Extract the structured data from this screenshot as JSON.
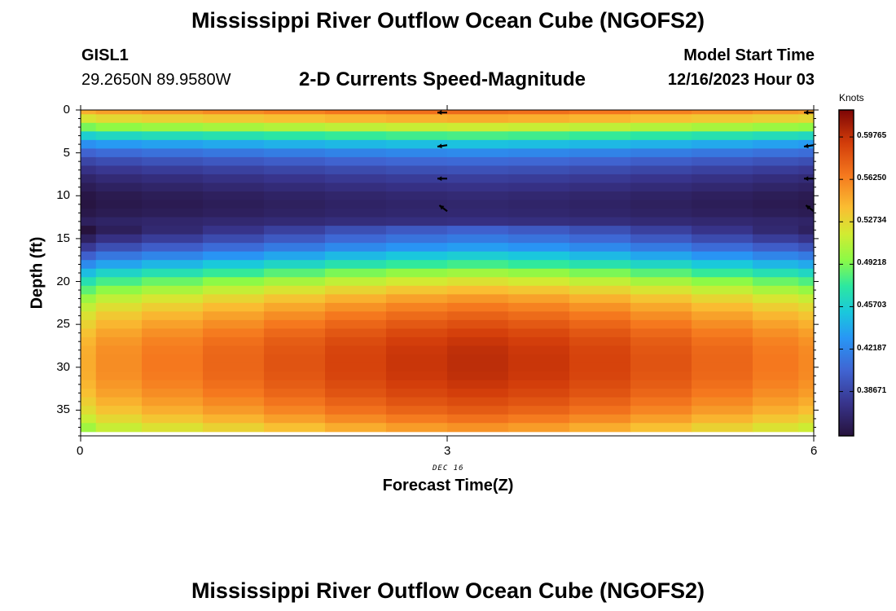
{
  "title": "Mississippi River Outflow Ocean Cube (NGOFS2)",
  "title_repeat": "Mississippi River Outflow Ocean Cube (NGOFS2)",
  "station": {
    "id": "GISL1",
    "coords": "29.2650N  89.9580W"
  },
  "model": {
    "label": "Model Start Time",
    "time": "12/16/2023 Hour 03"
  },
  "subtitle": "2-D Currents Speed-Magnitude",
  "chart_data": {
    "type": "heatmap",
    "xlabel": "Forecast Time(Z)",
    "ylabel": "Depth (ft)",
    "x_ticks": [
      "0",
      "3",
      "6"
    ],
    "y_ticks": [
      "0",
      "5",
      "10",
      "15",
      "20",
      "25",
      "30",
      "35"
    ],
    "x_range": [
      0,
      6
    ],
    "y_range": [
      0,
      38
    ],
    "y_inverted": true,
    "date_label": "DEC 16",
    "colorbar": {
      "unit": "Knots",
      "ticks": [
        "0.59765",
        "0.56250",
        "0.52734",
        "0.49218",
        "0.45703",
        "0.42187",
        "0.38671"
      ],
      "range": [
        0.35,
        0.62
      ]
    },
    "time_columns": [
      0,
      0.25,
      0.75,
      1.25,
      1.75,
      2.25,
      2.75,
      3.25,
      3.75,
      4.25,
      4.75,
      5.25,
      5.75,
      6
    ],
    "depth_profile": {
      "depth": [
        0,
        1,
        2,
        3,
        4,
        5,
        6,
        7,
        8,
        9,
        10,
        11,
        12,
        13,
        14,
        15,
        16,
        17,
        18,
        19,
        20,
        21,
        22,
        23,
        24,
        25,
        26,
        27,
        28,
        29,
        30,
        31,
        32,
        33,
        34,
        35,
        36,
        37
      ],
      "base_speed": [
        0.56,
        0.535,
        0.505,
        0.47,
        0.44,
        0.415,
        0.398,
        0.385,
        0.375,
        0.368,
        0.362,
        0.36,
        0.362,
        0.368,
        0.378,
        0.392,
        0.41,
        0.432,
        0.455,
        0.478,
        0.498,
        0.515,
        0.53,
        0.542,
        0.552,
        0.56,
        0.567,
        0.572,
        0.575,
        0.576,
        0.576,
        0.575,
        0.572,
        0.568,
        0.562,
        0.555,
        0.545,
        0.532
      ]
    },
    "time_modulation": [
      -0.03,
      -0.018,
      -0.01,
      -0.002,
      0.006,
      0.014,
      0.02,
      0.024,
      0.02,
      0.014,
      0.006,
      -0.002,
      -0.01,
      -0.016
    ],
    "vectors": [
      {
        "time": 3,
        "depth": 0.3,
        "u": -1,
        "v": 0
      },
      {
        "time": 3,
        "depth": 4.1,
        "u": -1,
        "v": 0.15
      },
      {
        "time": 3,
        "depth": 8,
        "u": -1,
        "v": 0
      },
      {
        "time": 3,
        "depth": 11.8,
        "u": -0.8,
        "v": -0.6
      },
      {
        "time": 6,
        "depth": 0.3,
        "u": -1,
        "v": 0
      },
      {
        "time": 6,
        "depth": 4.1,
        "u": -1,
        "v": 0.15
      },
      {
        "time": 6,
        "depth": 8,
        "u": -1,
        "v": 0
      },
      {
        "time": 6,
        "depth": 11.8,
        "u": -0.8,
        "v": -0.6
      }
    ]
  }
}
